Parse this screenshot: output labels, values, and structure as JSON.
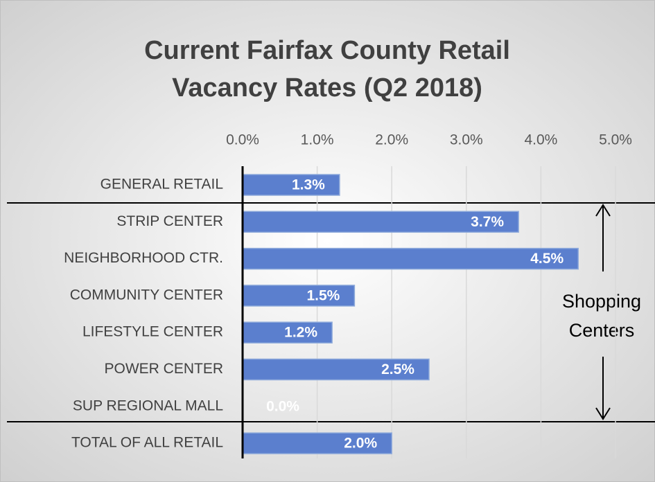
{
  "chart_data": {
    "type": "bar",
    "orientation": "horizontal",
    "title": [
      "Current Fairfax County Retail",
      "Vacancy Rates (Q2 2018)"
    ],
    "categories": [
      "GENERAL RETAIL",
      "STRIP CENTER",
      "NEIGHBORHOOD CTR.",
      "COMMUNITY CENTER",
      "LIFESTYLE CENTER",
      "POWER CENTER",
      "SUP REGIONAL MALL",
      "TOTAL OF ALL RETAIL"
    ],
    "values": [
      1.3,
      3.7,
      4.5,
      1.5,
      1.2,
      2.5,
      0.0,
      2.0
    ],
    "value_labels": [
      "1.3%",
      "3.7%",
      "4.5%",
      "1.5%",
      "1.2%",
      "2.5%",
      "0.0%",
      "2.0%"
    ],
    "color": "#5b7fce",
    "xlim": [
      0,
      5
    ],
    "xticks": [
      {
        "value": 0,
        "label": "0.0%"
      },
      {
        "value": 1,
        "label": "1.0%"
      },
      {
        "value": 2,
        "label": "2.0%"
      },
      {
        "value": 3,
        "label": "3.0%"
      },
      {
        "value": 4,
        "label": "4.0%"
      },
      {
        "value": 5,
        "label": "5.0%"
      }
    ],
    "grid": true,
    "annotation": [
      "Shopping",
      "Centers"
    ]
  }
}
